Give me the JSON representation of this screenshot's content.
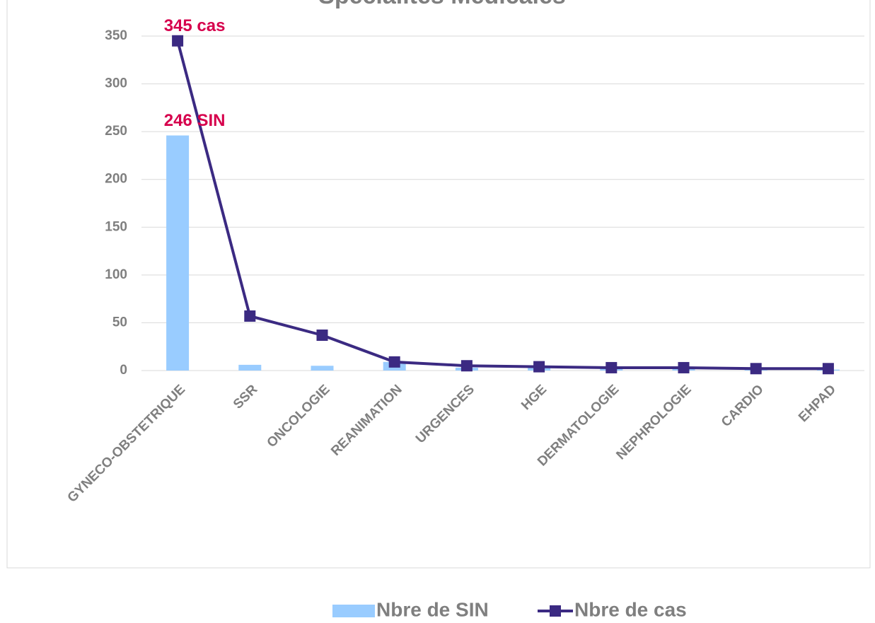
{
  "chart_data": {
    "type": "bar+line",
    "title": "Spécialités Médicales",
    "categories": [
      "GYNECO-OBSTETRIQUE",
      "SSR",
      "ONCOLOGIE",
      "REANIMATION",
      "URGENCES",
      "HGE",
      "DERMATOLOGIE",
      "NEPHROLOGIE",
      "CARDIO",
      "EHPAD"
    ],
    "series": [
      {
        "name": "Nbre de SIN",
        "type": "bar",
        "color": "#99ccff",
        "values": [
          246,
          6,
          5,
          9,
          3,
          3,
          2,
          2,
          1,
          1
        ],
        "value_labels": [
          "246 SIN",
          null,
          null,
          null,
          null,
          null,
          null,
          null,
          null,
          null
        ]
      },
      {
        "name": "Nbre de cas",
        "type": "line",
        "color": "#3b2a82",
        "values": [
          345,
          57,
          37,
          9,
          5,
          4,
          3,
          3,
          2,
          2
        ],
        "value_labels": [
          "345 cas",
          null,
          null,
          null,
          null,
          null,
          null,
          null,
          null,
          null
        ]
      }
    ],
    "ylim": [
      0,
      350
    ],
    "yticks": [
      0,
      50,
      100,
      150,
      200,
      250,
      300,
      350
    ],
    "grid": true,
    "legend": "bottom"
  }
}
